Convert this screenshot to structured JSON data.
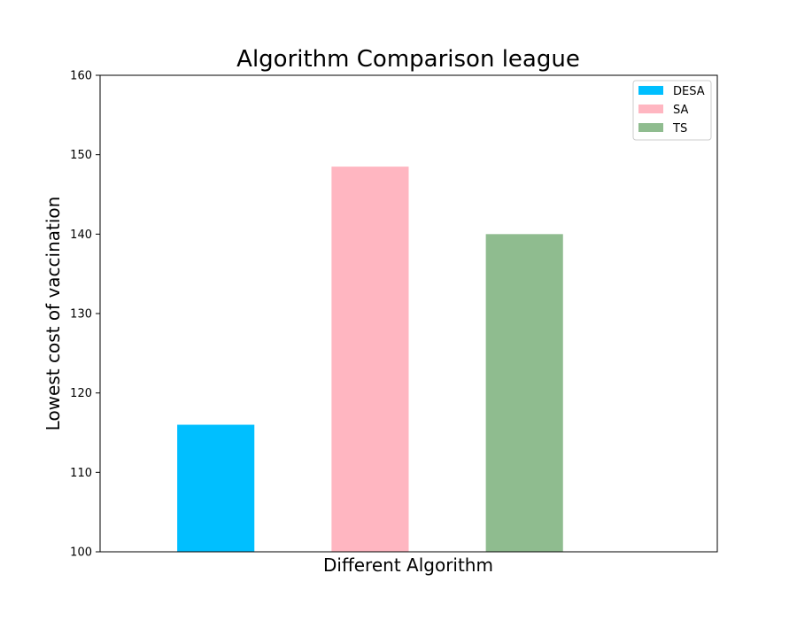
{
  "chart_data": {
    "type": "bar",
    "title": "Algorithm Comparison league",
    "xlabel": "Different Algorithm",
    "ylabel": "Lowest cost of vaccination",
    "ylim": [
      100,
      160
    ],
    "yticks": [
      100,
      110,
      120,
      130,
      140,
      150,
      160
    ],
    "xlim": [
      -0.75,
      3.25
    ],
    "grid": false,
    "legend_position": "top-right",
    "series": [
      {
        "name": "DESA",
        "x": 0.0,
        "value": 116,
        "color": "#00bfff"
      },
      {
        "name": "SA",
        "x": 1.0,
        "value": 148.5,
        "color": "#ffb6c1"
      },
      {
        "name": "TS",
        "x": 2.0,
        "value": 140,
        "color": "#8fbc8f"
      }
    ]
  }
}
